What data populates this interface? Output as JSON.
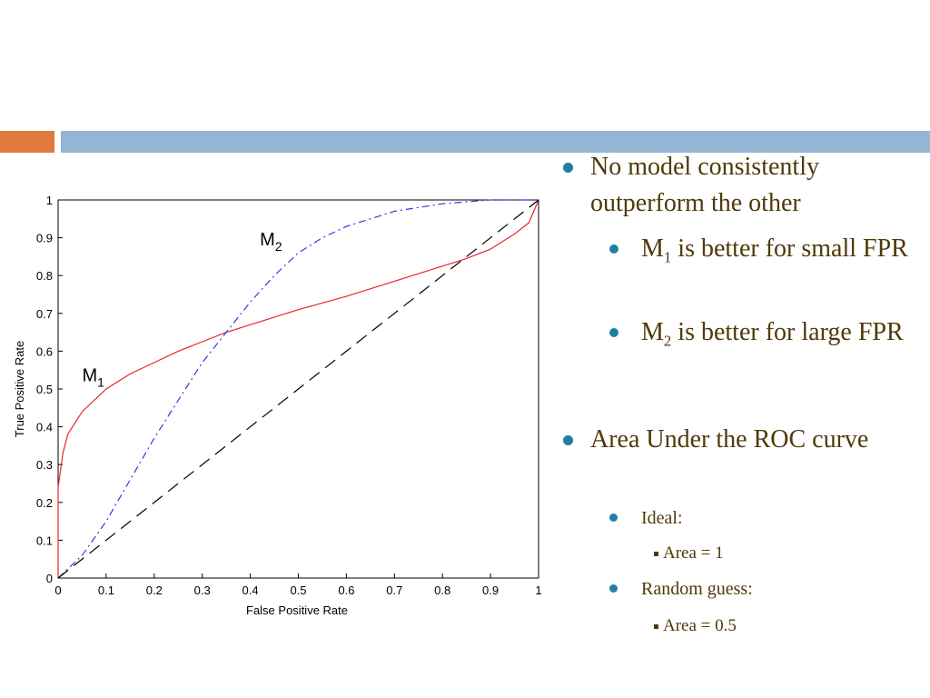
{
  "chart_data": {
    "type": "line",
    "xlabel": "False Positive Rate",
    "ylabel": "True Positive Rate",
    "xlim": [
      0,
      1
    ],
    "ylim": [
      0,
      1
    ],
    "xticks": [
      0,
      0.1,
      0.2,
      0.3,
      0.4,
      0.5,
      0.6,
      0.7,
      0.8,
      0.9,
      1
    ],
    "yticks": [
      0,
      0.1,
      0.2,
      0.3,
      0.4,
      0.5,
      0.6,
      0.7,
      0.8,
      0.9,
      1
    ],
    "series": [
      {
        "color": "#e8242b",
        "dash": "solid",
        "x": [
          0,
          0,
          0.01,
          0.02,
          0.05,
          0.1,
          0.15,
          0.2,
          0.25,
          0.3,
          0.35,
          0.4,
          0.5,
          0.6,
          0.7,
          0.8,
          0.85,
          0.9,
          0.95,
          0.98,
          1
        ],
        "values": [
          0,
          0.24,
          0.33,
          0.38,
          0.44,
          0.5,
          0.54,
          0.57,
          0.6,
          0.625,
          0.65,
          0.67,
          0.71,
          0.745,
          0.785,
          0.825,
          0.845,
          0.87,
          0.91,
          0.94,
          1
        ]
      },
      {
        "color": "#2a3cf0",
        "dash": "dashdot",
        "x": [
          0,
          0.05,
          0.1,
          0.15,
          0.2,
          0.25,
          0.3,
          0.35,
          0.4,
          0.45,
          0.5,
          0.55,
          0.6,
          0.7,
          0.8,
          0.9,
          1
        ],
        "values": [
          0,
          0.06,
          0.15,
          0.26,
          0.37,
          0.47,
          0.57,
          0.65,
          0.73,
          0.8,
          0.86,
          0.9,
          0.93,
          0.97,
          0.99,
          1,
          1
        ]
      },
      {
        "color": "#000000",
        "dash": "dashed",
        "x": [
          0,
          1
        ],
        "values": [
          0,
          1
        ]
      }
    ],
    "annotations": [
      {
        "text": "M",
        "sub": "2",
        "x": 0.42,
        "y": 0.88
      },
      {
        "text": "M",
        "sub": "1",
        "x": 0.05,
        "y": 0.52
      }
    ]
  },
  "bullets": [
    {
      "lines": [
        {
          "text": "No model consistently outperform the other"
        }
      ],
      "children": [
        {
          "text": "M",
          "sub": "1",
          "rest": " is better for small FPR"
        },
        {
          "text": "M",
          "sub": "2",
          "rest": " is better for large FPR"
        }
      ]
    },
    {
      "lines": [
        {
          "text": "Area Under the ROC curve"
        }
      ],
      "children": [
        {
          "text": "Ideal:",
          "items": [
            "Area = 1"
          ]
        },
        {
          "text": "Random guess:",
          "items": [
            "Area = 0.5"
          ]
        }
      ]
    }
  ]
}
